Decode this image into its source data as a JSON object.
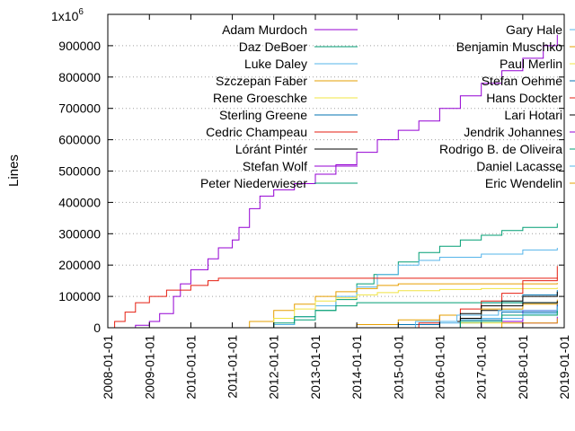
{
  "chart_data": {
    "type": "line",
    "title": "",
    "xlabel": "",
    "ylabel": "Lines",
    "y_exponent_label": {
      "base": "1x10",
      "exp": "6"
    },
    "x_type": "date",
    "xlim": [
      "2008-01-01",
      "2019-01-01"
    ],
    "ylim": [
      0,
      1000000
    ],
    "y_ticks": [
      0,
      100000,
      200000,
      300000,
      400000,
      500000,
      600000,
      700000,
      800000,
      900000
    ],
    "y_tick_labels": [
      "0",
      "100000",
      "200000",
      "300000",
      "400000",
      "500000",
      "600000",
      "700000",
      "800000",
      "900000"
    ],
    "x_ticks": [
      "2008-01-01",
      "2009-01-01",
      "2010-01-01",
      "2011-01-01",
      "2012-01-01",
      "2013-01-01",
      "2014-01-01",
      "2015-01-01",
      "2016-01-01",
      "2017-01-01",
      "2018-01-01",
      "2019-01-01"
    ],
    "grid": true,
    "legend_placement": "top, two columns",
    "series": [
      {
        "name": "Adam Murdoch",
        "color": "#9400d3",
        "column": 1,
        "points": [
          [
            "2008-07-15",
            0
          ],
          [
            "2008-09-01",
            8000
          ],
          [
            "2009-01-01",
            20000
          ],
          [
            "2009-04-01",
            45000
          ],
          [
            "2009-08-01",
            100000
          ],
          [
            "2009-10-01",
            140000
          ],
          [
            "2010-01-01",
            185000
          ],
          [
            "2010-06-01",
            220000
          ],
          [
            "2010-09-01",
            255000
          ],
          [
            "2011-01-01",
            280000
          ],
          [
            "2011-03-01",
            320000
          ],
          [
            "2011-06-01",
            380000
          ],
          [
            "2011-09-01",
            420000
          ],
          [
            "2012-01-01",
            440000
          ],
          [
            "2012-07-01",
            460000
          ],
          [
            "2013-01-01",
            490000
          ],
          [
            "2013-07-01",
            520000
          ],
          [
            "2014-01-01",
            560000
          ],
          [
            "2014-07-01",
            600000
          ],
          [
            "2015-01-01",
            630000
          ],
          [
            "2015-07-01",
            660000
          ],
          [
            "2016-01-01",
            700000
          ],
          [
            "2016-07-01",
            740000
          ],
          [
            "2017-01-01",
            780000
          ],
          [
            "2017-07-01",
            820000
          ],
          [
            "2018-01-01",
            860000
          ],
          [
            "2018-07-01",
            900000
          ],
          [
            "2018-11-01",
            935000
          ]
        ]
      },
      {
        "name": "Daz DeBoer",
        "color": "#009e73",
        "column": 1,
        "points": [
          [
            "2011-02-01",
            0
          ],
          [
            "2012-01-01",
            10000
          ],
          [
            "2012-07-01",
            25000
          ],
          [
            "2013-01-01",
            55000
          ],
          [
            "2013-07-01",
            90000
          ],
          [
            "2014-01-01",
            140000
          ],
          [
            "2014-06-01",
            170000
          ],
          [
            "2015-01-01",
            210000
          ],
          [
            "2015-07-01",
            240000
          ],
          [
            "2016-01-01",
            260000
          ],
          [
            "2016-07-01",
            280000
          ],
          [
            "2017-01-01",
            295000
          ],
          [
            "2017-07-01",
            310000
          ],
          [
            "2018-01-01",
            320000
          ],
          [
            "2018-11-01",
            333000
          ]
        ]
      },
      {
        "name": "Luke Daley",
        "color": "#56b4e9",
        "column": 1,
        "points": [
          [
            "2011-02-01",
            0
          ],
          [
            "2012-01-01",
            10000
          ],
          [
            "2012-07-01",
            35000
          ],
          [
            "2013-01-01",
            70000
          ],
          [
            "2013-07-01",
            100000
          ],
          [
            "2014-01-01",
            130000
          ],
          [
            "2014-07-01",
            170000
          ],
          [
            "2015-01-01",
            200000
          ],
          [
            "2015-07-01",
            215000
          ],
          [
            "2016-01-01",
            225000
          ],
          [
            "2017-01-01",
            235000
          ],
          [
            "2018-01-01",
            248000
          ],
          [
            "2018-11-01",
            255000
          ]
        ]
      },
      {
        "name": "Szczepan Faber",
        "color": "#e69f00",
        "column": 1,
        "points": [
          [
            "2011-02-01",
            0
          ],
          [
            "2011-06-01",
            20000
          ],
          [
            "2012-01-01",
            55000
          ],
          [
            "2012-07-01",
            75000
          ],
          [
            "2013-01-01",
            100000
          ],
          [
            "2013-07-01",
            115000
          ],
          [
            "2014-01-01",
            125000
          ],
          [
            "2014-07-01",
            135000
          ],
          [
            "2015-01-01",
            140000
          ],
          [
            "2018-11-01",
            143000
          ]
        ]
      },
      {
        "name": "Rene Groeschke",
        "color": "#f0e442",
        "column": 1,
        "points": [
          [
            "2011-03-01",
            0
          ],
          [
            "2012-01-01",
            30000
          ],
          [
            "2012-07-01",
            60000
          ],
          [
            "2013-01-01",
            85000
          ],
          [
            "2013-07-01",
            95000
          ],
          [
            "2014-01-01",
            105000
          ],
          [
            "2014-07-01",
            112000
          ],
          [
            "2015-01-01",
            118000
          ],
          [
            "2016-01-01",
            122000
          ],
          [
            "2017-01-01",
            125000
          ],
          [
            "2018-11-01",
            128000
          ]
        ]
      },
      {
        "name": "Sterling Greene",
        "color": "#0072b2",
        "column": 1,
        "points": [
          [
            "2014-01-01",
            0
          ],
          [
            "2015-01-01",
            10000
          ],
          [
            "2016-01-01",
            40000
          ],
          [
            "2017-01-01",
            80000
          ],
          [
            "2018-01-01",
            105000
          ],
          [
            "2018-11-01",
            120000
          ]
        ]
      },
      {
        "name": "Cedric Champeau",
        "color": "#e51e10",
        "column": 1,
        "points": [
          [
            "2015-02-01",
            0
          ],
          [
            "2015-07-01",
            15000
          ],
          [
            "2016-01-01",
            40000
          ],
          [
            "2016-07-01",
            60000
          ],
          [
            "2017-01-01",
            85000
          ],
          [
            "2017-07-01",
            110000
          ],
          [
            "2018-01-01",
            150000
          ],
          [
            "2018-11-01",
            197000
          ]
        ]
      },
      {
        "name": "Lóránt Pintér",
        "color": "#000000",
        "column": 1,
        "points": [
          [
            "2015-06-01",
            0
          ],
          [
            "2016-01-01",
            20000
          ],
          [
            "2016-07-01",
            45000
          ],
          [
            "2017-01-01",
            70000
          ],
          [
            "2017-07-01",
            85000
          ],
          [
            "2018-01-01",
            100000
          ],
          [
            "2018-11-01",
            115000
          ]
        ]
      },
      {
        "name": "Stefan Wolf",
        "color": "#9400d3",
        "column": 1,
        "points": [
          [
            "2016-01-01",
            0
          ],
          [
            "2017-01-01",
            20000
          ],
          [
            "2018-01-01",
            55000
          ],
          [
            "2018-11-01",
            80000
          ]
        ]
      },
      {
        "name": "Peter Niederwieser",
        "color": "#009e73",
        "column": 1,
        "points": [
          [
            "2011-06-01",
            0
          ],
          [
            "2012-01-01",
            15000
          ],
          [
            "2012-07-01",
            35000
          ],
          [
            "2013-01-01",
            55000
          ],
          [
            "2013-07-01",
            70000
          ],
          [
            "2014-01-01",
            80000
          ],
          [
            "2018-11-01",
            82000
          ]
        ]
      },
      {
        "name": "Gary Hale",
        "color": "#56b4e9",
        "column": 2,
        "points": [
          [
            "2015-01-01",
            0
          ],
          [
            "2016-01-01",
            15000
          ],
          [
            "2017-01-01",
            30000
          ],
          [
            "2018-01-01",
            45000
          ],
          [
            "2018-11-01",
            55000
          ]
        ]
      },
      {
        "name": "Benjamin Muschko",
        "color": "#e69f00",
        "column": 2,
        "points": [
          [
            "2013-01-01",
            0
          ],
          [
            "2014-01-01",
            10000
          ],
          [
            "2015-01-01",
            25000
          ],
          [
            "2016-01-01",
            40000
          ],
          [
            "2017-01-01",
            60000
          ],
          [
            "2018-01-01",
            75000
          ],
          [
            "2018-11-01",
            90000
          ]
        ]
      },
      {
        "name": "Paul Merlin",
        "color": "#f0e442",
        "column": 2,
        "points": [
          [
            "2015-09-01",
            0
          ],
          [
            "2016-07-01",
            15000
          ],
          [
            "2017-07-01",
            40000
          ],
          [
            "2018-11-01",
            60000
          ]
        ]
      },
      {
        "name": "Stefan Oehme",
        "color": "#0072b2",
        "column": 2,
        "points": [
          [
            "2015-06-01",
            0
          ],
          [
            "2016-07-01",
            25000
          ],
          [
            "2017-07-01",
            50000
          ],
          [
            "2018-11-01",
            75000
          ]
        ]
      },
      {
        "name": "Hans Dockter",
        "color": "#e51e10",
        "column": 2,
        "points": [
          [
            "2008-01-01",
            0
          ],
          [
            "2008-03-01",
            20000
          ],
          [
            "2008-06-01",
            50000
          ],
          [
            "2008-09-01",
            80000
          ],
          [
            "2009-01-01",
            100000
          ],
          [
            "2009-06-01",
            120000
          ],
          [
            "2010-01-01",
            135000
          ],
          [
            "2010-06-01",
            150000
          ],
          [
            "2010-09-01",
            158000
          ],
          [
            "2018-11-01",
            160000
          ]
        ]
      },
      {
        "name": "Lari Hotari",
        "color": "#000000",
        "column": 2,
        "points": [
          [
            "2016-01-01",
            0
          ],
          [
            "2016-07-01",
            30000
          ],
          [
            "2017-01-01",
            55000
          ],
          [
            "2017-07-01",
            70000
          ],
          [
            "2018-01-01",
            80000
          ],
          [
            "2018-11-01",
            85000
          ]
        ]
      },
      {
        "name": "Jendrik Johannes",
        "color": "#9400d3",
        "column": 2,
        "points": [
          [
            "2017-07-01",
            0
          ],
          [
            "2018-01-01",
            15000
          ],
          [
            "2018-11-01",
            35000
          ]
        ]
      },
      {
        "name": "Rodrigo B. de Oliveira",
        "color": "#009e73",
        "column": 2,
        "points": [
          [
            "2015-09-01",
            0
          ],
          [
            "2016-07-01",
            20000
          ],
          [
            "2017-07-01",
            40000
          ],
          [
            "2018-11-01",
            65000
          ]
        ]
      },
      {
        "name": "Daniel Lacasse",
        "color": "#56b4e9",
        "column": 2,
        "points": [
          [
            "2014-06-01",
            0
          ],
          [
            "2015-06-01",
            20000
          ],
          [
            "2016-06-01",
            40000
          ],
          [
            "2017-06-01",
            55000
          ],
          [
            "2018-11-01",
            68000
          ]
        ]
      },
      {
        "name": "Eric Wendelin",
        "color": "#e69f00",
        "column": 2,
        "points": [
          [
            "2016-09-01",
            0
          ],
          [
            "2017-07-01",
            15000
          ],
          [
            "2018-11-01",
            30000
          ]
        ]
      }
    ]
  }
}
